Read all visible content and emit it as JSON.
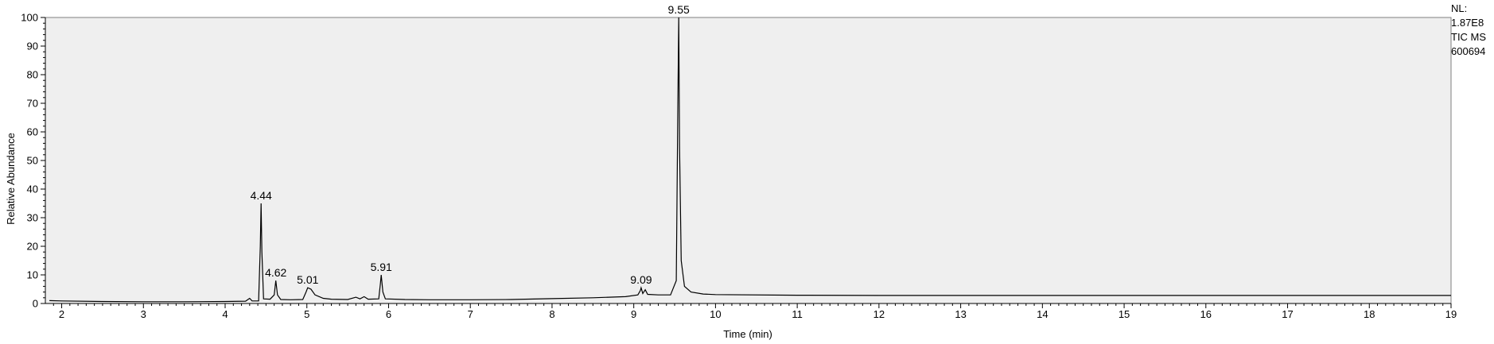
{
  "chart_data": {
    "type": "line",
    "title": "",
    "xlabel": "Time (min)",
    "ylabel": "Relative Abundance",
    "xlim": [
      1.8,
      19
    ],
    "ylim": [
      0,
      100
    ],
    "x_ticks": [
      2,
      3,
      4,
      5,
      6,
      7,
      8,
      9,
      10,
      11,
      12,
      13,
      14,
      15,
      16,
      17,
      18,
      19
    ],
    "y_ticks": [
      0,
      10,
      20,
      30,
      40,
      50,
      60,
      70,
      80,
      90,
      100
    ],
    "grid": false,
    "legend": "none",
    "colors": {
      "plot_bg": "#efefef",
      "line": "#000000"
    },
    "info_lines": [
      "NL:",
      "1.87E8",
      "TIC  MS",
      "600694"
    ],
    "peak_labels": [
      {
        "x": 4.44,
        "y": 35,
        "text": "4.44"
      },
      {
        "x": 4.62,
        "y": 8,
        "text": "4.62"
      },
      {
        "x": 5.01,
        "y": 5.5,
        "text": "5.01"
      },
      {
        "x": 5.91,
        "y": 10,
        "text": "5.91"
      },
      {
        "x": 9.09,
        "y": 5.5,
        "text": "9.09"
      },
      {
        "x": 9.55,
        "y": 100,
        "text": "9.55"
      }
    ],
    "series": [
      {
        "values": [
          [
            1.85,
            1.0
          ],
          [
            2.0,
            0.9
          ],
          [
            2.5,
            0.7
          ],
          [
            3.0,
            0.6
          ],
          [
            3.5,
            0.6
          ],
          [
            4.0,
            0.7
          ],
          [
            4.25,
            0.8
          ],
          [
            4.3,
            1.8
          ],
          [
            4.33,
            0.9
          ],
          [
            4.41,
            0.9
          ],
          [
            4.43,
            20
          ],
          [
            4.44,
            35
          ],
          [
            4.45,
            18
          ],
          [
            4.47,
            1.6
          ],
          [
            4.55,
            1.5
          ],
          [
            4.6,
            3.0
          ],
          [
            4.62,
            8.0
          ],
          [
            4.64,
            3.0
          ],
          [
            4.68,
            1.4
          ],
          [
            4.8,
            1.3
          ],
          [
            4.95,
            1.4
          ],
          [
            4.99,
            4.0
          ],
          [
            5.01,
            5.5
          ],
          [
            5.05,
            5.0
          ],
          [
            5.1,
            3.0
          ],
          [
            5.2,
            1.8
          ],
          [
            5.3,
            1.5
          ],
          [
            5.5,
            1.4
          ],
          [
            5.6,
            2.2
          ],
          [
            5.65,
            1.6
          ],
          [
            5.7,
            2.4
          ],
          [
            5.75,
            1.5
          ],
          [
            5.88,
            1.6
          ],
          [
            5.9,
            7.0
          ],
          [
            5.91,
            10.0
          ],
          [
            5.93,
            4.0
          ],
          [
            5.96,
            1.6
          ],
          [
            6.2,
            1.4
          ],
          [
            6.5,
            1.3
          ],
          [
            7.0,
            1.3
          ],
          [
            7.5,
            1.4
          ],
          [
            8.0,
            1.7
          ],
          [
            8.5,
            2.0
          ],
          [
            8.9,
            2.4
          ],
          [
            9.05,
            3.0
          ],
          [
            9.08,
            4.5
          ],
          [
            9.09,
            5.5
          ],
          [
            9.11,
            3.5
          ],
          [
            9.14,
            4.8
          ],
          [
            9.17,
            3.2
          ],
          [
            9.3,
            3.0
          ],
          [
            9.45,
            3.0
          ],
          [
            9.52,
            8.0
          ],
          [
            9.54,
            70.0
          ],
          [
            9.55,
            100.0
          ],
          [
            9.56,
            55.0
          ],
          [
            9.58,
            15.0
          ],
          [
            9.62,
            6.0
          ],
          [
            9.7,
            4.0
          ],
          [
            9.85,
            3.3
          ],
          [
            10.0,
            3.1
          ],
          [
            11.0,
            2.9
          ],
          [
            12.0,
            2.8
          ],
          [
            13.0,
            2.8
          ],
          [
            14.0,
            2.8
          ],
          [
            15.0,
            2.8
          ],
          [
            16.0,
            2.8
          ],
          [
            17.0,
            2.8
          ],
          [
            18.0,
            2.8
          ],
          [
            19.0,
            2.8
          ]
        ]
      }
    ]
  }
}
